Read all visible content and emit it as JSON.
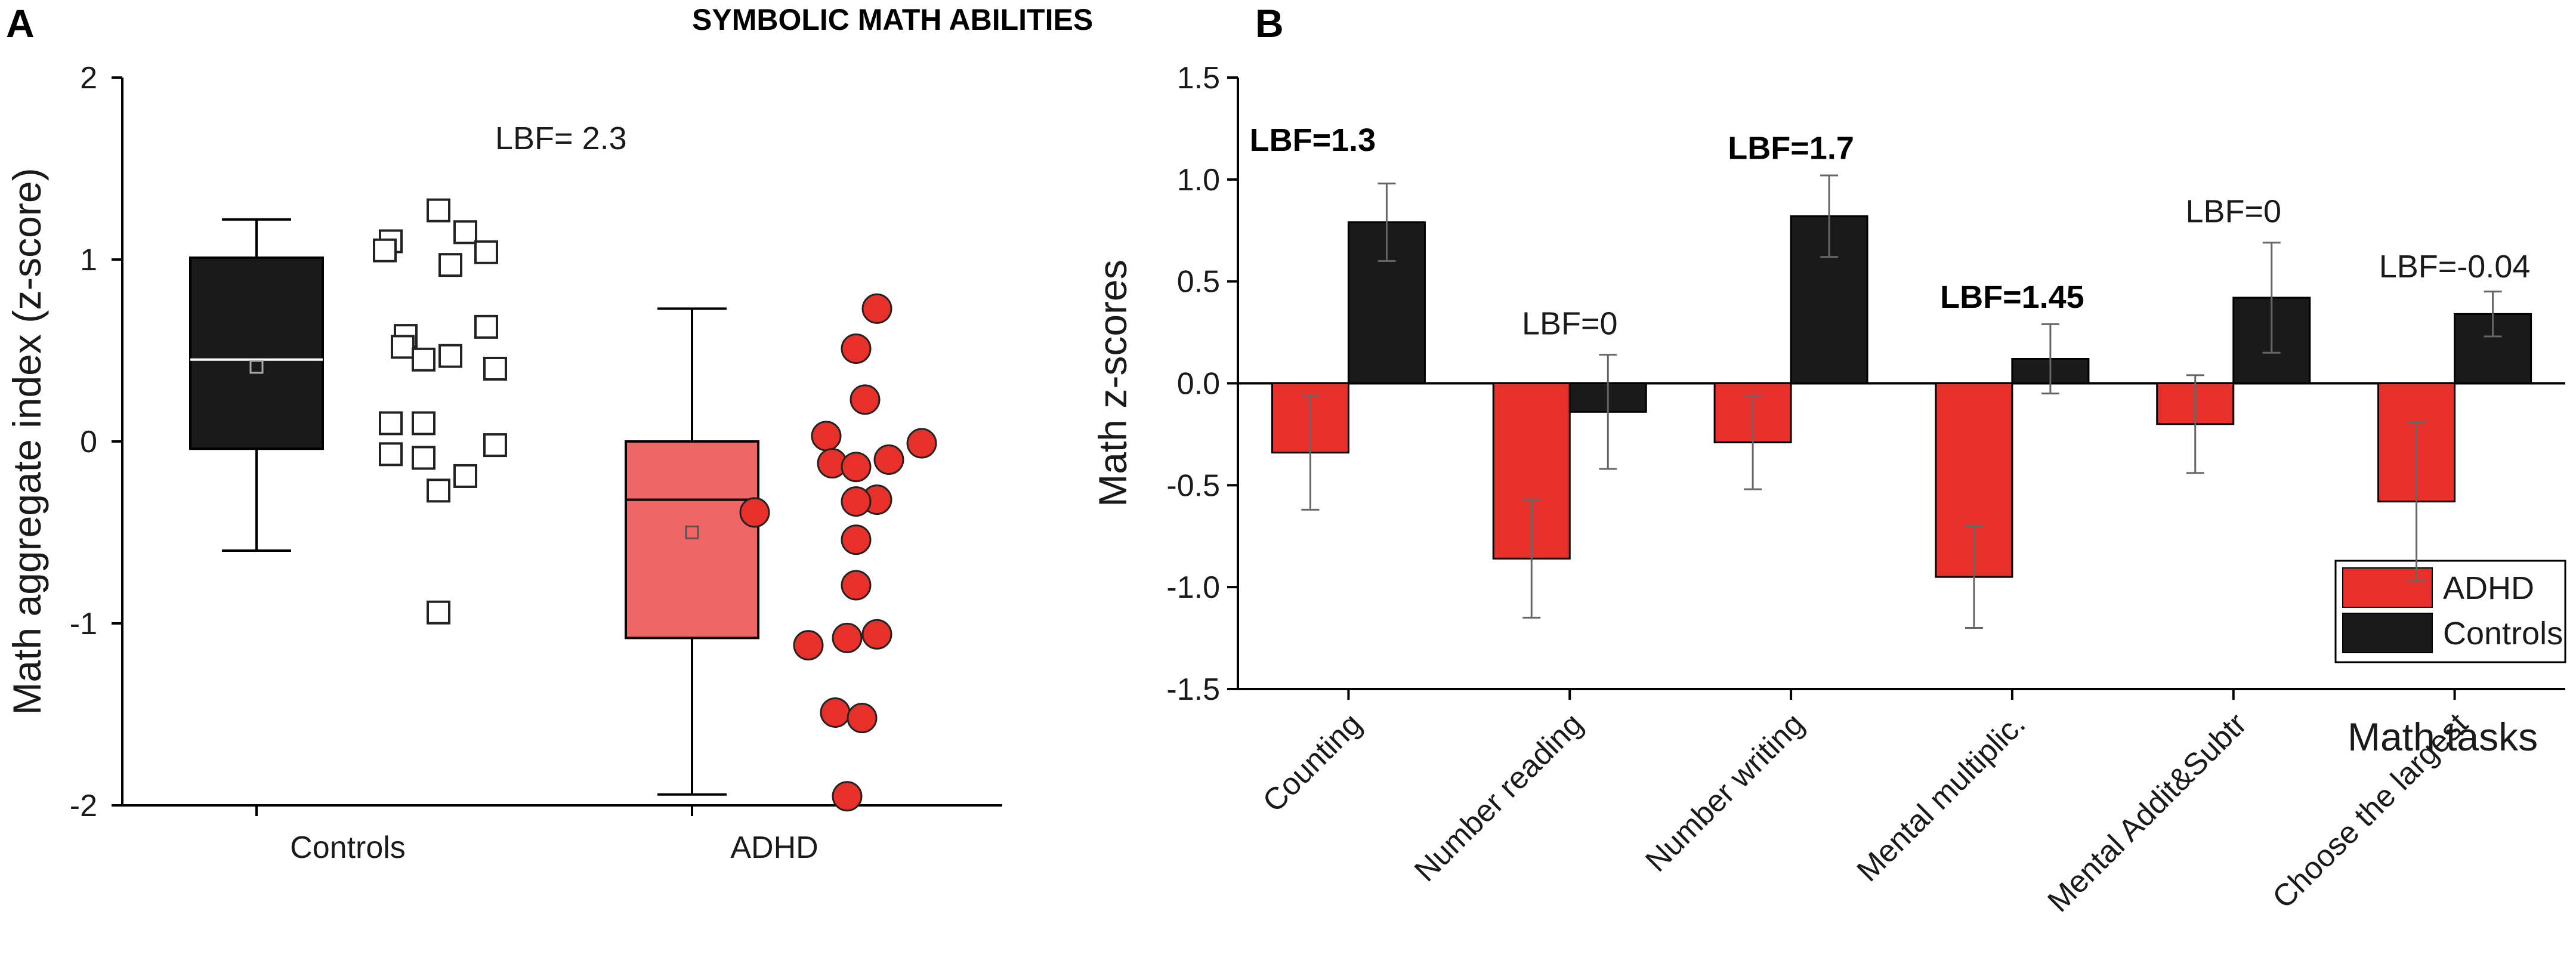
{
  "figure": {
    "title": "SYMBOLIC MATH ABILITIES",
    "colors": {
      "adhd": "#e8302a",
      "adhd_box": "#ee6666",
      "controls": "#1a1a1a",
      "axis": "#000000"
    }
  },
  "chart_data": [
    {
      "panel": "A",
      "type": "box",
      "ylabel": "Math aggregate index (z-score)",
      "ylim": [
        -2,
        2
      ],
      "yticks": [
        "2",
        "1",
        "0",
        "-1",
        "-2"
      ],
      "categories": [
        "Controls",
        "ADHD"
      ],
      "annotation": "LBF= 2.3",
      "boxes": [
        {
          "name": "Controls",
          "whisker_low": -0.6,
          "q1": -0.04,
          "median": 0.45,
          "q3": 1.01,
          "whisker_high": 1.22,
          "mean": 0.41
        },
        {
          "name": "ADHD",
          "whisker_low": -1.94,
          "q1": -1.08,
          "median": -0.32,
          "q3": 0.0,
          "whisker_high": 0.73,
          "mean": -0.5
        }
      ],
      "points": {
        "Controls": [
          1.27,
          1.15,
          1.1,
          1.05,
          1.04,
          0.97,
          0.63,
          0.58,
          0.52,
          0.47,
          0.45,
          0.4,
          0.1,
          0.1,
          -0.02,
          -0.07,
          -0.09,
          -0.19,
          -0.27,
          -0.94
        ],
        "ADHD": [
          0.73,
          0.51,
          0.23,
          0.03,
          -0.01,
          -0.1,
          -0.12,
          -0.14,
          -0.32,
          -0.33,
          -0.39,
          -0.54,
          -0.79,
          -1.06,
          -1.08,
          -1.12,
          -1.49,
          -1.52,
          -1.95
        ]
      }
    },
    {
      "panel": "B",
      "type": "bar",
      "ylabel": "Math z-scores",
      "xlabel": "Math tasks",
      "ylim": [
        -1.5,
        1.5
      ],
      "yticks": [
        "1.5",
        "1.0",
        "0.5",
        "0.0",
        "-0.5",
        "-1.0",
        "-1.5"
      ],
      "categories": [
        "Counting",
        "Number reading",
        "Number writing",
        "Mental multiplic.",
        "Mental Addit&Subtr",
        "Choose the largest"
      ],
      "series": [
        {
          "name": "ADHD",
          "values": [
            -0.34,
            -0.86,
            -0.29,
            -0.95,
            -0.2,
            -0.58
          ],
          "errors": [
            0.28,
            0.29,
            0.23,
            0.25,
            0.24,
            0.39
          ]
        },
        {
          "name": "Controls",
          "values": [
            0.79,
            -0.14,
            0.82,
            0.12,
            0.42,
            0.34
          ],
          "errors": [
            0.19,
            0.28,
            0.2,
            0.17,
            0.27,
            0.11
          ]
        }
      ],
      "annotations": [
        {
          "text": "LBF=1.3",
          "bold": true,
          "category": 0,
          "y": 1.14
        },
        {
          "text": "LBF=0",
          "bold": false,
          "category": 1,
          "y": 0.24
        },
        {
          "text": "LBF=1.7",
          "bold": true,
          "category": 2,
          "y": 1.1
        },
        {
          "text": "LBF=1.45",
          "bold": true,
          "category": 3,
          "y": 0.37
        },
        {
          "text": "LBF=0",
          "bold": false,
          "category": 4,
          "y": 0.79
        },
        {
          "text": "LBF=-0.04",
          "bold": false,
          "category": 5,
          "y": 0.52
        }
      ],
      "legend": {
        "position": "bottom-right",
        "items": [
          "ADHD",
          "Controls"
        ]
      }
    }
  ]
}
